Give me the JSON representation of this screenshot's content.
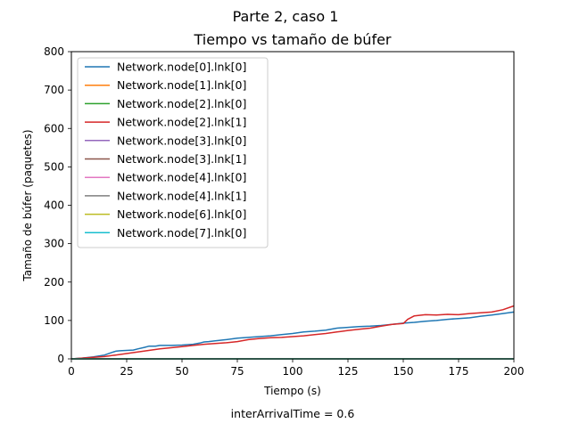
{
  "figure": {
    "suptitle": "Parte 2, caso 1",
    "caption": "interArrivalTime = 0.6"
  },
  "chart_data": {
    "type": "line",
    "title": "Tiempo vs tamaño de búfer",
    "xlabel": "Tiempo (s)",
    "ylabel": "Tamaño de búfer (paquetes)",
    "xlim": [
      0,
      200
    ],
    "ylim": [
      0,
      800
    ],
    "xticks": [
      0,
      25,
      50,
      75,
      100,
      125,
      150,
      175,
      200
    ],
    "yticks": [
      0,
      100,
      200,
      300,
      400,
      500,
      600,
      700,
      800
    ],
    "grid": false,
    "legend_position": "top-left",
    "series": [
      {
        "name": "Network.node[0].lnk[0]",
        "color": "#1f77b4",
        "x": [
          0,
          5,
          10,
          15,
          18,
          20,
          22,
          25,
          28,
          30,
          33,
          35,
          38,
          40,
          45,
          50,
          55,
          58,
          60,
          62,
          65,
          70,
          75,
          80,
          85,
          90,
          95,
          100,
          105,
          110,
          115,
          120,
          125,
          130,
          135,
          140,
          145,
          150,
          155,
          160,
          165,
          170,
          175,
          180,
          185,
          190,
          195,
          200
        ],
        "y": [
          0,
          2,
          5,
          10,
          16,
          20,
          21,
          22,
          23,
          26,
          30,
          33,
          33,
          35,
          35,
          36,
          38,
          41,
          44,
          45,
          47,
          50,
          54,
          56,
          58,
          60,
          63,
          66,
          70,
          72,
          75,
          80,
          82,
          84,
          85,
          87,
          90,
          93,
          95,
          98,
          100,
          103,
          105,
          107,
          111,
          114,
          118,
          122
        ]
      },
      {
        "name": "Network.node[1].lnk[0]",
        "color": "#ff7f0e",
        "x": [
          0,
          200
        ],
        "y": [
          0,
          0
        ]
      },
      {
        "name": "Network.node[2].lnk[0]",
        "color": "#2ca02c",
        "x": [
          0,
          200
        ],
        "y": [
          0,
          0
        ]
      },
      {
        "name": "Network.node[2].lnk[1]",
        "color": "#d62728",
        "x": [
          0,
          5,
          10,
          15,
          20,
          25,
          30,
          35,
          40,
          45,
          50,
          55,
          60,
          65,
          70,
          75,
          80,
          85,
          90,
          95,
          100,
          105,
          110,
          115,
          120,
          125,
          130,
          135,
          140,
          145,
          150,
          152,
          155,
          160,
          165,
          170,
          175,
          180,
          185,
          190,
          195,
          200
        ],
        "y": [
          0,
          2,
          4,
          6,
          10,
          14,
          18,
          22,
          26,
          29,
          32,
          35,
          38,
          40,
          42,
          45,
          50,
          53,
          55,
          56,
          58,
          60,
          63,
          66,
          70,
          74,
          77,
          80,
          85,
          90,
          92,
          103,
          112,
          115,
          114,
          116,
          115,
          118,
          120,
          122,
          128,
          138
        ]
      },
      {
        "name": "Network.node[3].lnk[0]",
        "color": "#9467bd",
        "x": [
          0,
          200
        ],
        "y": [
          0,
          0
        ]
      },
      {
        "name": "Network.node[3].lnk[1]",
        "color": "#8c564b",
        "x": [
          0,
          200
        ],
        "y": [
          0,
          0
        ]
      },
      {
        "name": "Network.node[4].lnk[0]",
        "color": "#e377c2",
        "x": [
          0,
          200
        ],
        "y": [
          0,
          0
        ]
      },
      {
        "name": "Network.node[4].lnk[1]",
        "color": "#7f7f7f",
        "x": [
          0,
          200
        ],
        "y": [
          0,
          0
        ]
      },
      {
        "name": "Network.node[6].lnk[0]",
        "color": "#bcbd22",
        "x": [
          0,
          200
        ],
        "y": [
          0,
          0
        ]
      },
      {
        "name": "Network.node[7].lnk[0]",
        "color": "#17becf",
        "x": [
          0,
          200
        ],
        "y": [
          0,
          0
        ]
      }
    ]
  }
}
